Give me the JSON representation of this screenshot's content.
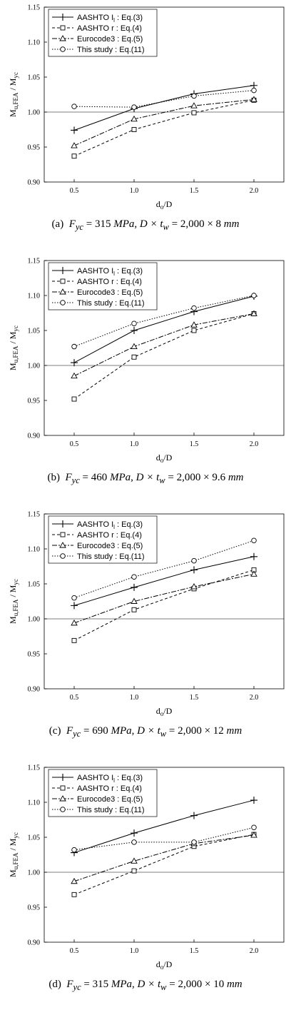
{
  "chart_data": [
    {
      "type": "line",
      "panel_label": "(a)",
      "caption": {
        "fyc": "315",
        "unit1": "MPa",
        "dims": "2,000 × 8",
        "unit2": "mm"
      },
      "xlabel": "d_o/D",
      "ylabel": "M_u,FEA / M_yc",
      "x": [
        0.5,
        1.0,
        1.5,
        2.0
      ],
      "x_ticks": [
        "0.5",
        "1.0",
        "1.5",
        "2.0"
      ],
      "y_ticks": [
        "0.90",
        "0.95",
        "1.00",
        "1.05",
        "1.10",
        "1.15"
      ],
      "ylim": [
        0.9,
        1.15
      ],
      "reference_line": 1.0,
      "legend_position": "top-left",
      "series": [
        {
          "name": "AASHTO I_l : Eq.(3)",
          "values": [
            0.974,
            1.005,
            1.026,
            1.038
          ]
        },
        {
          "name": "AASHTO r : Eq.(4)",
          "values": [
            0.937,
            0.975,
            0.999,
            1.017
          ]
        },
        {
          "name": "Eurocode3 : Eq.(5)",
          "values": [
            0.952,
            0.99,
            1.009,
            1.018
          ]
        },
        {
          "name": "This study : Eq.(11)",
          "values": [
            1.008,
            1.007,
            1.023,
            1.031
          ]
        }
      ]
    },
    {
      "type": "line",
      "panel_label": "(b)",
      "caption": {
        "fyc": "460",
        "unit1": "MPa",
        "dims": "2,000 × 9.6",
        "unit2": "mm"
      },
      "xlabel": "d_o/D",
      "ylabel": "M_u,FEA / M_yc",
      "x": [
        0.5,
        1.0,
        1.5,
        2.0
      ],
      "x_ticks": [
        "0.5",
        "1.0",
        "1.5",
        "2.0"
      ],
      "y_ticks": [
        "0.90",
        "0.95",
        "1.00",
        "1.05",
        "1.10",
        "1.15"
      ],
      "ylim": [
        0.9,
        1.15
      ],
      "reference_line": 1.0,
      "legend_position": "top-left",
      "series": [
        {
          "name": "AASHTO I_l : Eq.(3)",
          "values": [
            1.004,
            1.05,
            1.077,
            1.099
          ]
        },
        {
          "name": "AASHTO r : Eq.(4)",
          "values": [
            0.952,
            1.012,
            1.05,
            1.074
          ]
        },
        {
          "name": "Eurocode3 : Eq.(5)",
          "values": [
            0.985,
            1.027,
            1.058,
            1.074
          ]
        },
        {
          "name": "This study : Eq.(11)",
          "values": [
            1.027,
            1.06,
            1.082,
            1.1
          ]
        }
      ]
    },
    {
      "type": "line",
      "panel_label": "(c)",
      "caption": {
        "fyc": "690",
        "unit1": "MPa",
        "dims": "2,000 × 12",
        "unit2": "mm"
      },
      "xlabel": "d_o/D",
      "ylabel": "M_u,FEA / M_yc",
      "x": [
        0.5,
        1.0,
        1.5,
        2.0
      ],
      "x_ticks": [
        "0.5",
        "1.0",
        "1.5",
        "2.0"
      ],
      "y_ticks": [
        "0.90",
        "0.95",
        "1.00",
        "1.05",
        "1.10",
        "1.15"
      ],
      "ylim": [
        0.9,
        1.15
      ],
      "reference_line": 1.0,
      "legend_position": "top-left",
      "series": [
        {
          "name": "AASHTO I_l : Eq.(3)",
          "values": [
            1.019,
            1.045,
            1.07,
            1.089
          ]
        },
        {
          "name": "AASHTO r : Eq.(4)",
          "values": [
            0.969,
            1.013,
            1.043,
            1.07
          ]
        },
        {
          "name": "Eurocode3 : Eq.(5)",
          "values": [
            0.994,
            1.025,
            1.046,
            1.064
          ]
        },
        {
          "name": "This study : Eq.(11)",
          "values": [
            1.03,
            1.06,
            1.083,
            1.112
          ]
        }
      ]
    },
    {
      "type": "line",
      "panel_label": "(d)",
      "caption": {
        "fyc": "315",
        "unit1": "MPa",
        "dims": "2,000 × 10",
        "unit2": "mm"
      },
      "xlabel": "d_o/D",
      "ylabel": "M_u,FEA / M_yc",
      "x": [
        0.5,
        1.0,
        1.5,
        2.0
      ],
      "x_ticks": [
        "0.5",
        "1.0",
        "1.5",
        "2.0"
      ],
      "y_ticks": [
        "0.90",
        "0.95",
        "1.00",
        "1.05",
        "1.10",
        "1.15"
      ],
      "ylim": [
        0.9,
        1.15
      ],
      "reference_line": 1.0,
      "legend_position": "top-left",
      "series": [
        {
          "name": "AASHTO I_l : Eq.(3)",
          "values": [
            1.028,
            1.056,
            1.081,
            1.103
          ]
        },
        {
          "name": "AASHTO r : Eq.(4)",
          "values": [
            0.968,
            1.002,
            1.037,
            1.054
          ]
        },
        {
          "name": "Eurocode3 : Eq.(5)",
          "values": [
            0.987,
            1.016,
            1.041,
            1.053
          ]
        },
        {
          "name": "This study : Eq.(11)",
          "values": [
            1.032,
            1.043,
            1.043,
            1.064
          ]
        }
      ]
    }
  ],
  "series_styles": [
    {
      "marker": "plus",
      "dash": "",
      "color": "#000000"
    },
    {
      "marker": "square",
      "dash": "4,3",
      "color": "#000000"
    },
    {
      "marker": "triangle",
      "dash": "7,2,2,2",
      "color": "#000000"
    },
    {
      "marker": "circle",
      "dash": "1.5,2",
      "color": "#000000"
    }
  ]
}
